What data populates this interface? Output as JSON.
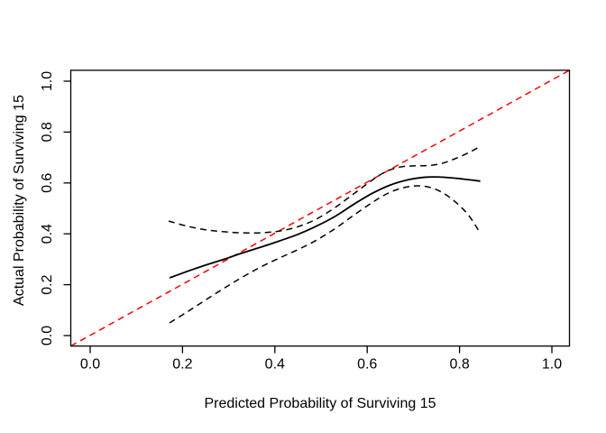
{
  "figure": {
    "background": "#ffffff",
    "axis_color": "#000000"
  },
  "chart_data": {
    "type": "line",
    "title": "",
    "xlabel": "Predicted Probability of Surviving 15",
    "ylabel": "Actual Probability of Surviving 15",
    "xlim": [
      -0.042,
      1.038
    ],
    "ylim": [
      -0.041,
      1.043
    ],
    "grid": false,
    "legend": "none",
    "x_ticks": {
      "values": [
        0.0,
        0.2,
        0.4,
        0.6,
        0.8,
        1.0
      ],
      "labels": [
        "0.0",
        "0.2",
        "0.4",
        "0.6",
        "0.8",
        "1.0"
      ]
    },
    "y_ticks": {
      "values": [
        0.0,
        0.2,
        0.4,
        0.6,
        0.8,
        1.0
      ],
      "labels": [
        "0.0",
        "0.2",
        "0.4",
        "0.6",
        "0.8",
        "1.0"
      ]
    },
    "series": [
      {
        "name": "ideal",
        "description": "ideal calibration diagonal y = x",
        "color": "#ff0000",
        "style": "dashed",
        "width": 1.5,
        "smooth": false,
        "points": [
          [
            -0.042,
            -0.041
          ],
          [
            1.038,
            1.043
          ]
        ]
      },
      {
        "name": "calibration",
        "description": "observed calibration curve",
        "color": "#000000",
        "style": "solid",
        "width": 1.8,
        "smooth": true,
        "points": [
          [
            0.172,
            0.227
          ],
          [
            0.21,
            0.252
          ],
          [
            0.25,
            0.277
          ],
          [
            0.29,
            0.3
          ],
          [
            0.33,
            0.325
          ],
          [
            0.37,
            0.348
          ],
          [
            0.41,
            0.372
          ],
          [
            0.45,
            0.398
          ],
          [
            0.49,
            0.43
          ],
          [
            0.53,
            0.468
          ],
          [
            0.57,
            0.515
          ],
          [
            0.61,
            0.558
          ],
          [
            0.65,
            0.592
          ],
          [
            0.69,
            0.613
          ],
          [
            0.73,
            0.623
          ],
          [
            0.77,
            0.622
          ],
          [
            0.81,
            0.615
          ],
          [
            0.845,
            0.607
          ]
        ]
      },
      {
        "name": "upper-ci",
        "description": "upper confidence band",
        "color": "#000000",
        "style": "dashed",
        "width": 1.5,
        "smooth": true,
        "points": [
          [
            0.17,
            0.45
          ],
          [
            0.21,
            0.43
          ],
          [
            0.25,
            0.416
          ],
          [
            0.29,
            0.408
          ],
          [
            0.33,
            0.404
          ],
          [
            0.37,
            0.404
          ],
          [
            0.41,
            0.411
          ],
          [
            0.45,
            0.428
          ],
          [
            0.49,
            0.458
          ],
          [
            0.53,
            0.503
          ],
          [
            0.57,
            0.556
          ],
          [
            0.61,
            0.61
          ],
          [
            0.64,
            0.644
          ],
          [
            0.67,
            0.662
          ],
          [
            0.7,
            0.667
          ],
          [
            0.73,
            0.668
          ],
          [
            0.76,
            0.676
          ],
          [
            0.79,
            0.695
          ],
          [
            0.82,
            0.719
          ],
          [
            0.845,
            0.744
          ]
        ]
      },
      {
        "name": "lower-ci",
        "description": "lower confidence band",
        "color": "#000000",
        "style": "dashed",
        "width": 1.5,
        "smooth": true,
        "points": [
          [
            0.172,
            0.05
          ],
          [
            0.21,
            0.093
          ],
          [
            0.25,
            0.14
          ],
          [
            0.29,
            0.186
          ],
          [
            0.33,
            0.23
          ],
          [
            0.37,
            0.27
          ],
          [
            0.41,
            0.305
          ],
          [
            0.45,
            0.338
          ],
          [
            0.49,
            0.375
          ],
          [
            0.53,
            0.42
          ],
          [
            0.57,
            0.472
          ],
          [
            0.61,
            0.522
          ],
          [
            0.64,
            0.555
          ],
          [
            0.67,
            0.577
          ],
          [
            0.7,
            0.588
          ],
          [
            0.73,
            0.585
          ],
          [
            0.76,
            0.565
          ],
          [
            0.79,
            0.527
          ],
          [
            0.82,
            0.472
          ],
          [
            0.845,
            0.402
          ]
        ]
      }
    ]
  }
}
